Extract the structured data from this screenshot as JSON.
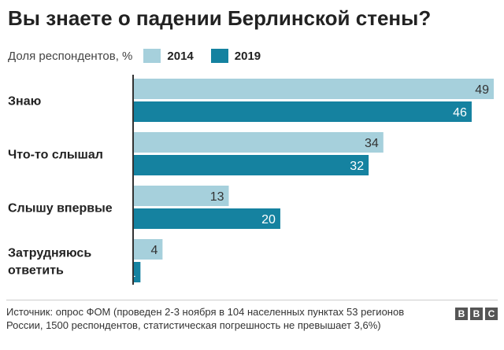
{
  "chart_data": {
    "type": "bar",
    "orientation": "horizontal",
    "title": "Вы знаете о падении Берлинской стены?",
    "ylabel": "Доля респондентов, %",
    "categories": [
      [
        "Знаю"
      ],
      [
        "Что-то слышал"
      ],
      [
        "Слышу впервые"
      ],
      [
        "Затрудняюсь",
        "ответить"
      ]
    ],
    "series": [
      {
        "name": "2014",
        "color": "#a6d0dc",
        "label_color": "#333333",
        "values": [
          49,
          34,
          13,
          4
        ]
      },
      {
        "name": "2019",
        "color": "#1582a0",
        "label_color": "#ffffff",
        "values": [
          46,
          32,
          20,
          1
        ]
      }
    ],
    "xlim": [
      0,
      49
    ]
  },
  "legend_label": "Доля респондентов, %",
  "source": "Источник: опрос ФОМ (проведен 2-3 ноября в 104 населенных пунктах 53 регионов России, 1500 респондентов, статистическая погрешность не превышает 3,6%)",
  "logo": [
    "B",
    "B",
    "C"
  ]
}
